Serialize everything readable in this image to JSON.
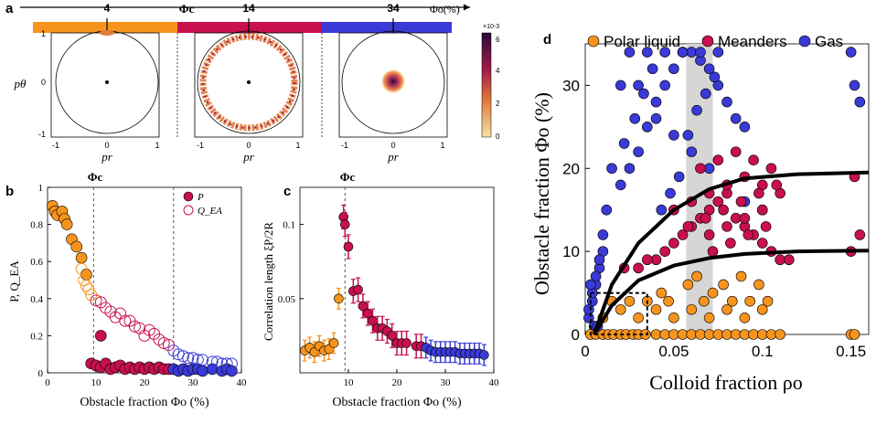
{
  "panels": {
    "a": "a",
    "b": "b",
    "c": "c",
    "d": "d"
  },
  "colors": {
    "orange": "#f7941d",
    "crimson": "#c8104e",
    "blue": "#3a3ad6",
    "cbar_low": "#f3d79b",
    "cbar_high": "#2a0a3a"
  },
  "top_bar": {
    "phi_c_label": "Φc",
    "phi_o_label": "Φo(%)",
    "ticks": [
      "4",
      "14",
      "34"
    ]
  },
  "panel_a": {
    "ylabel": "pθ",
    "xlabel": "pr",
    "y_ticks": [
      "1",
      "0",
      "-1"
    ],
    "x_ticks": [
      "-1",
      "0",
      "1"
    ],
    "colorbar_exponent": "×10-3",
    "colorbar_ticks": [
      "6",
      "4",
      "2",
      "0"
    ]
  },
  "chart_data": [
    {
      "type": "scatter",
      "panel": "b",
      "title": "",
      "xlabel": "Obstacle fraction Φo (%)",
      "ylabel": "P, Q_EA",
      "xlim": [
        0,
        40
      ],
      "ylim": [
        0,
        1
      ],
      "x_ticks": [
        "0",
        "10",
        "20",
        "30",
        "40"
      ],
      "y_ticks": [
        "0",
        "0.2",
        "0.4",
        "0.6",
        "0.8",
        "1"
      ],
      "phi_c_label": "Φc",
      "legend": [
        "P",
        "Q_EA"
      ],
      "series": [
        {
          "name": "P (polar liquid)",
          "color": "orange",
          "x": [
            1,
            1.5,
            2,
            3,
            3.5,
            4,
            5,
            6,
            7,
            8
          ],
          "y": [
            0.9,
            0.87,
            0.85,
            0.87,
            0.83,
            0.8,
            0.72,
            0.68,
            0.62,
            0.53
          ]
        },
        {
          "name": "Q_EA (polar liquid)",
          "color": "orange",
          "x": [
            7,
            7.5,
            8,
            8.5,
            9
          ],
          "y": [
            0.56,
            0.5,
            0.47,
            0.45,
            0.42
          ]
        },
        {
          "name": "P (meanders)",
          "color": "crimson",
          "x": [
            9,
            10,
            11,
            11,
            12,
            13,
            14,
            15,
            16,
            17,
            18,
            19,
            20,
            21,
            22,
            23,
            24,
            25
          ],
          "y": [
            0.05,
            0.04,
            0.2,
            0.03,
            0.05,
            0.02,
            0.03,
            0.04,
            0.02,
            0.03,
            0.02,
            0.03,
            0.02,
            0.03,
            0.02,
            0.03,
            0.02,
            0.02
          ]
        },
        {
          "name": "Q_EA (meanders)",
          "color": "crimson",
          "x": [
            10,
            11,
            12,
            13,
            14,
            15,
            16,
            17,
            18,
            19,
            20,
            21,
            22,
            23,
            24,
            25
          ],
          "y": [
            0.39,
            0.38,
            0.35,
            0.33,
            0.3,
            0.32,
            0.28,
            0.28,
            0.25,
            0.24,
            0.2,
            0.23,
            0.21,
            0.18,
            0.16,
            0.15
          ]
        },
        {
          "name": "P (gas)",
          "color": "blue",
          "x": [
            26,
            27,
            28,
            29,
            30,
            31,
            32,
            34,
            36,
            37,
            38
          ],
          "y": [
            0.02,
            0.01,
            0.02,
            0.01,
            0.02,
            0.02,
            0.01,
            0.02,
            0.01,
            0.02,
            0.01
          ]
        },
        {
          "name": "Q_EA (gas)",
          "color": "blue",
          "x": [
            26,
            27,
            28,
            29,
            30,
            31,
            32,
            34,
            35,
            36,
            37,
            38
          ],
          "y": [
            0.12,
            0.1,
            0.09,
            0.08,
            0.08,
            0.07,
            0.07,
            0.06,
            0.06,
            0.05,
            0.05,
            0.05
          ]
        }
      ]
    },
    {
      "type": "scatter",
      "panel": "c",
      "title": "",
      "xlabel": "Obstacle fraction Φo (%)",
      "ylabel": "Correlation length ξP/2R",
      "xlim": [
        0,
        40
      ],
      "ylim": [
        0,
        0.125
      ],
      "x_ticks": [
        "10",
        "20",
        "30",
        "40"
      ],
      "y_ticks": [
        "0.05",
        "0.1"
      ],
      "phi_c_label": "Φc",
      "series": [
        {
          "name": "polar liquid",
          "color": "orange",
          "x": [
            1,
            2,
            3,
            4,
            5,
            6,
            7,
            8
          ],
          "y": [
            0.015,
            0.017,
            0.014,
            0.018,
            0.015,
            0.016,
            0.02,
            0.05
          ],
          "err": 0.007
        },
        {
          "name": "meanders",
          "color": "crimson",
          "x": [
            9,
            9.3,
            10,
            11,
            12,
            13,
            14,
            15,
            16,
            17,
            18,
            19,
            20,
            21,
            22,
            24,
            25
          ],
          "y": [
            0.105,
            0.1,
            0.085,
            0.055,
            0.056,
            0.045,
            0.04,
            0.035,
            0.03,
            0.03,
            0.028,
            0.025,
            0.02,
            0.02,
            0.02,
            0.018,
            0.018
          ],
          "err": 0.008
        },
        {
          "name": "gas",
          "color": "blue",
          "x": [
            26,
            27,
            28,
            29,
            30,
            31,
            32,
            33,
            34,
            35,
            36,
            37,
            38
          ],
          "y": [
            0.017,
            0.015,
            0.014,
            0.014,
            0.014,
            0.014,
            0.014,
            0.013,
            0.013,
            0.013,
            0.013,
            0.013,
            0.012
          ],
          "err": 0.007
        }
      ]
    },
    {
      "type": "scatter",
      "panel": "d",
      "title": "",
      "xlabel": "Colloid fraction ρo",
      "ylabel": "Obstacle fraction Φo (%)",
      "xlim": [
        0,
        0.16
      ],
      "ylim": [
        0,
        35
      ],
      "x_ticks": [
        "0",
        "0.05",
        "0.1",
        "0.15"
      ],
      "y_ticks": [
        "0",
        "10",
        "20",
        "30"
      ],
      "legend": [
        "Polar liquid",
        "Meanders",
        "Gas"
      ],
      "series": [
        {
          "name": "Polar liquid",
          "color": "orange",
          "x": [
            0.003,
            0.006,
            0.01,
            0.013,
            0.016,
            0.02,
            0.023,
            0.027,
            0.03,
            0.034,
            0.04,
            0.045,
            0.05,
            0.055,
            0.06,
            0.065,
            0.07,
            0.075,
            0.08,
            0.085,
            0.09,
            0.095,
            0.1,
            0.105,
            0.11,
            0.15,
            0.152,
            0.01,
            0.02,
            0.03,
            0.04,
            0.05,
            0.06,
            0.07,
            0.08,
            0.09,
            0.1,
            0.043,
            0.058,
            0.063,
            0.072,
            0.078,
            0.088,
            0.098,
            0.015,
            0.025,
            0.035,
            0.047,
            0.067,
            0.083,
            0.093,
            0.103
          ],
          "y": [
            0,
            0,
            0,
            0,
            0,
            0,
            0,
            0,
            0,
            0,
            0,
            0,
            0,
            0,
            0,
            0,
            0,
            0,
            0,
            0,
            0,
            0,
            0,
            0,
            0,
            0,
            0,
            2,
            3,
            2,
            3,
            2,
            3,
            2,
            3,
            2,
            3,
            5,
            6,
            7,
            5,
            6,
            7,
            6,
            4,
            4,
            4,
            4,
            4,
            4,
            4,
            4
          ]
        },
        {
          "name": "Meanders",
          "color": "crimson",
          "x": [
            0.04,
            0.045,
            0.05,
            0.055,
            0.06,
            0.065,
            0.07,
            0.075,
            0.08,
            0.085,
            0.09,
            0.095,
            0.1,
            0.105,
            0.11,
            0.115,
            0.15,
            0.155,
            0.05,
            0.06,
            0.07,
            0.08,
            0.09,
            0.1,
            0.11,
            0.065,
            0.075,
            0.085,
            0.095,
            0.105,
            0.07,
            0.08,
            0.09,
            0.1,
            0.072,
            0.082,
            0.092,
            0.102,
            0.03,
            0.035,
            0.022,
            0.058,
            0.068,
            0.078,
            0.088,
            0.098,
            0.108,
            0.152
          ],
          "y": [
            9,
            10,
            11,
            12,
            13,
            14,
            15,
            16,
            17,
            14,
            13,
            12,
            11,
            10,
            9,
            9,
            10,
            12,
            15,
            16,
            17,
            18,
            19,
            18,
            17,
            20,
            21,
            22,
            21,
            20,
            12,
            13,
            14,
            15,
            10,
            11,
            12,
            13,
            8,
            9,
            8,
            13,
            14,
            15,
            16,
            17,
            18,
            19
          ]
        },
        {
          "name": "Gas",
          "color": "blue",
          "x": [
            0.002,
            0.004,
            0.006,
            0.008,
            0.01,
            0.002,
            0.004,
            0.006,
            0.008,
            0.005,
            0.007,
            0.003,
            0.01,
            0.012,
            0.02,
            0.025,
            0.03,
            0.035,
            0.04,
            0.045,
            0.05,
            0.055,
            0.06,
            0.065,
            0.07,
            0.075,
            0.08,
            0.085,
            0.09,
            0.15,
            0.152,
            0.155,
            0.02,
            0.03,
            0.04,
            0.05,
            0.06,
            0.07,
            0.08,
            0.09,
            0.1,
            0.025,
            0.035,
            0.045,
            0.055,
            0.065,
            0.075,
            0.015,
            0.022,
            0.028,
            0.033,
            0.038,
            0.043,
            0.048,
            0.053,
            0.058,
            0.063,
            0.068,
            0.073
          ],
          "y": [
            2,
            4,
            6,
            8,
            10,
            3,
            5,
            7,
            9,
            1,
            1,
            6,
            12,
            15,
            18,
            20,
            22,
            25,
            28,
            30,
            32,
            34,
            34,
            33,
            32,
            30,
            28,
            26,
            25,
            34,
            30,
            28,
            30,
            30,
            26,
            24,
            22,
            20,
            18,
            16,
            15,
            34,
            34,
            34,
            34,
            34,
            34,
            20,
            23,
            26,
            29,
            32,
            15,
            17,
            19,
            24,
            27,
            29,
            31
          ]
        }
      ],
      "boundaries": [
        {
          "name": "upper",
          "x": [
            0.005,
            0.015,
            0.03,
            0.05,
            0.07,
            0.09,
            0.12,
            0.16
          ],
          "y": [
            0,
            6,
            11,
            15,
            17.5,
            18.8,
            19.3,
            19.5
          ]
        },
        {
          "name": "lower",
          "x": [
            0.005,
            0.015,
            0.03,
            0.05,
            0.07,
            0.09,
            0.12,
            0.16
          ],
          "y": [
            0,
            3.5,
            6.5,
            8.3,
            9.2,
            9.7,
            10,
            10.1
          ]
        }
      ],
      "shaded_band": [
        0.057,
        0.072
      ],
      "dashed_box": [
        0.003,
        0.035,
        0,
        5
      ]
    }
  ]
}
